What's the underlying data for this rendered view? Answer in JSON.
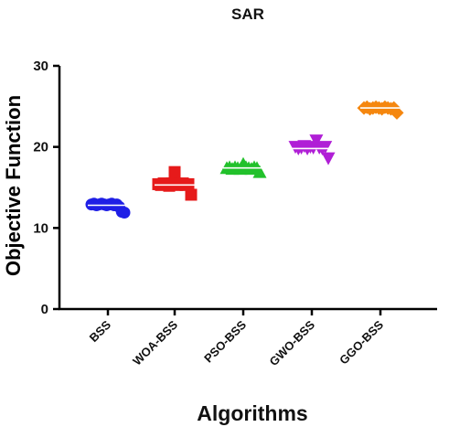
{
  "chart_data": {
    "type": "scatter",
    "title": "SAR",
    "xlabel": "Algorithms",
    "ylabel": "Objective Function",
    "ylim": [
      0,
      30
    ],
    "yticks": [
      0,
      10,
      20,
      30
    ],
    "categories": [
      "BSS",
      "WOA-BSS",
      "PSO-BSS",
      "GWO-BSS",
      "GGO-BSS"
    ],
    "grid": false,
    "legend": "none",
    "series": [
      {
        "category": "BSS",
        "marker": "circle",
        "color": "#1f1fe6",
        "values": [
          12.9,
          13.0,
          12.8,
          12.9,
          13.0,
          12.9,
          12.8,
          12.9,
          13.0,
          12.8,
          12.9,
          12.6,
          12.0,
          11.9
        ],
        "mean": 12.8
      },
      {
        "category": "WOA-BSS",
        "marker": "square",
        "color": "#e61a1a",
        "values": [
          15.4,
          15.3,
          15.5,
          15.4,
          15.2,
          15.5,
          16.9,
          15.3,
          15.4,
          15.5,
          15.3,
          15.4,
          14.1
        ],
        "mean": 15.3
      },
      {
        "category": "PSO-BSS",
        "marker": "triangle-up",
        "color": "#22c12b",
        "values": [
          17.4,
          17.5,
          17.3,
          17.5,
          17.4,
          17.3,
          17.9,
          17.5,
          17.4,
          17.3,
          17.5,
          17.4,
          16.9
        ],
        "mean": 17.4
      },
      {
        "category": "GWO-BSS",
        "marker": "triangle-down",
        "color": "#b01fd6",
        "values": [
          20.0,
          19.8,
          19.9,
          20.1,
          19.8,
          20.0,
          19.9,
          20.8,
          19.9,
          19.8,
          20.0,
          18.6
        ],
        "mean": 19.8
      },
      {
        "category": "GGO-BSS",
        "marker": "diamond",
        "color": "#f5870f",
        "values": [
          24.8,
          24.9,
          24.7,
          24.8,
          24.9,
          24.8,
          24.7,
          24.9,
          24.8,
          24.7,
          24.8,
          24.2
        ],
        "mean": 24.8
      }
    ]
  }
}
